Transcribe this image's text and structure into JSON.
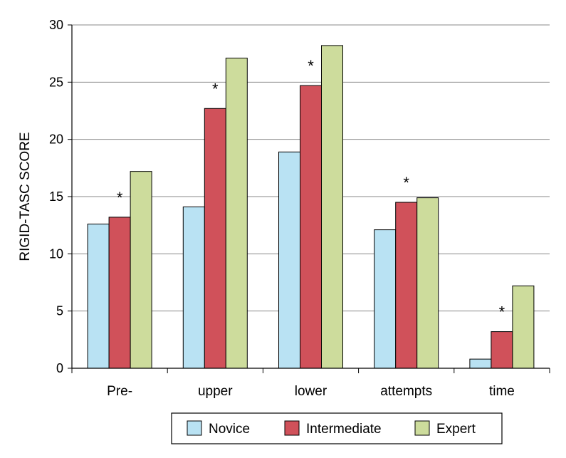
{
  "chart_data": {
    "type": "bar",
    "title": "",
    "xlabel": "",
    "ylabel": "RIGID-TASC SCORE",
    "ylim": [
      0,
      30
    ],
    "yticks": [
      0,
      5,
      10,
      15,
      20,
      25,
      30
    ],
    "grid": true,
    "legend_position": "bottom",
    "categories": [
      "Pre-",
      "upper",
      "lower",
      "attempts",
      "time"
    ],
    "series": [
      {
        "name": "Novice",
        "color": "#b9e2f3",
        "values": [
          12.6,
          14.1,
          18.9,
          12.1,
          0.8
        ]
      },
      {
        "name": "Intermediate",
        "color": "#d0515a",
        "values": [
          13.2,
          22.7,
          24.7,
          14.5,
          3.2
        ]
      },
      {
        "name": "Expert",
        "color": "#cddc9c",
        "values": [
          17.2,
          27.1,
          28.2,
          14.9,
          7.2
        ]
      }
    ],
    "annotations": [
      {
        "category": "Pre-",
        "text": "*"
      },
      {
        "category": "upper",
        "text": "*"
      },
      {
        "category": "lower",
        "text": "*"
      },
      {
        "category": "attempts",
        "text": "*"
      },
      {
        "category": "time",
        "text": "*"
      }
    ]
  }
}
